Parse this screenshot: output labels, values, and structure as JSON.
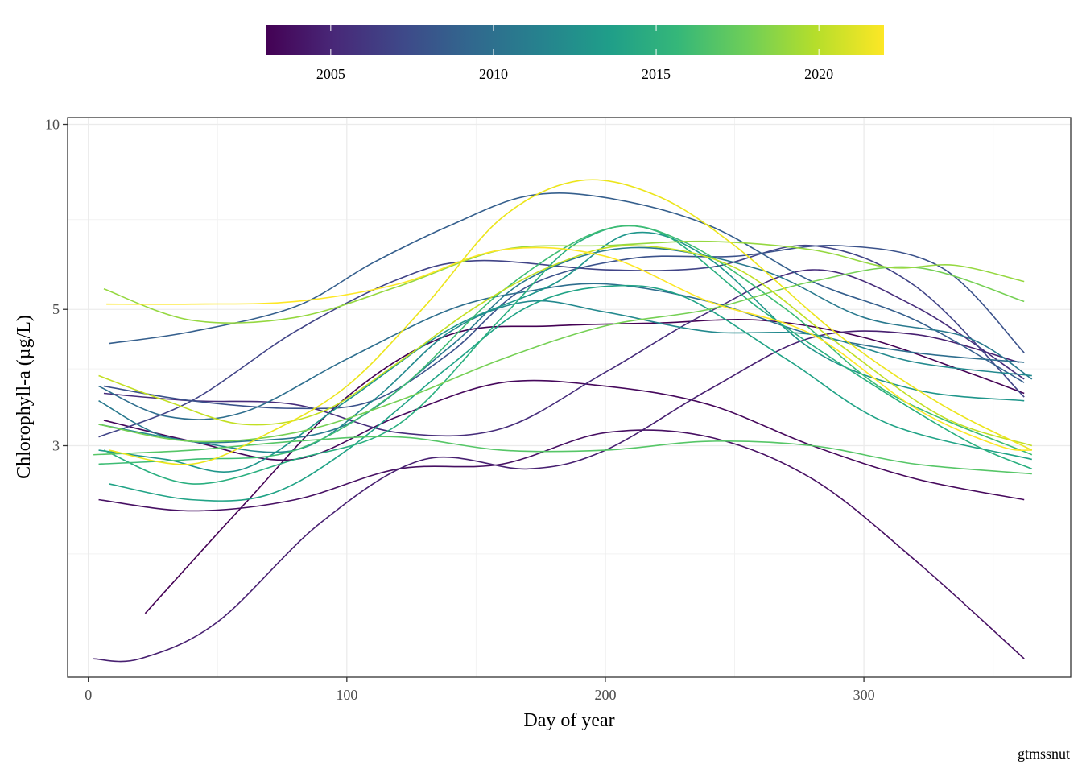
{
  "chart_data": {
    "type": "line",
    "xlabel": "Day of year",
    "ylabel": "Chlorophyll-a (µg/L)",
    "caption": "gtmssnut",
    "x_scale": "linear",
    "y_scale": "log",
    "xlim": [
      -8,
      380
    ],
    "ylim": [
      1.26,
      10.26
    ],
    "x_ticks": [
      0,
      100,
      200,
      300
    ],
    "x_tick_labels": [
      "0",
      "100",
      "200",
      "300"
    ],
    "y_ticks": [
      3,
      5,
      10
    ],
    "y_tick_labels": [
      "3",
      "5",
      "10"
    ],
    "grid": true,
    "colorbar": {
      "placement": "top",
      "palette": "viridis",
      "range": [
        2003,
        2022
      ],
      "ticks": [
        2005,
        2010,
        2015,
        2020
      ],
      "tick_labels": [
        "2005",
        "2010",
        "2015",
        "2020"
      ],
      "colors": [
        "#440154",
        "#482878",
        "#3e4989",
        "#31688e",
        "#26828e",
        "#1f9e89",
        "#35b779",
        "#6ece58",
        "#b5de2b",
        "#fde725"
      ]
    },
    "series": [
      {
        "year": 2003,
        "color": "#440154",
        "x": [
          22,
          60,
          100,
          140,
          180,
          220,
          260,
          300,
          340,
          362
        ],
        "y": [
          1.6,
          2.4,
          3.6,
          4.55,
          4.7,
          4.75,
          4.8,
          4.5,
          3.95,
          3.65
        ]
      },
      {
        "year": 2004,
        "color": "#46085c",
        "x": [
          6,
          40,
          80,
          120,
          160,
          200,
          240,
          280,
          320,
          362
        ],
        "y": [
          3.3,
          3.05,
          2.85,
          3.35,
          3.8,
          3.75,
          3.5,
          3.0,
          2.65,
          2.45
        ]
      },
      {
        "year": 2005,
        "color": "#471063",
        "x": [
          4,
          40,
          80,
          120,
          160,
          200,
          240,
          280,
          320,
          362
        ],
        "y": [
          2.45,
          2.35,
          2.45,
          2.75,
          2.8,
          3.15,
          3.1,
          2.65,
          1.95,
          1.35
        ]
      },
      {
        "year": 2006,
        "color": "#482071",
        "x": [
          2,
          20,
          50,
          90,
          130,
          170,
          200,
          240,
          280,
          320,
          360
        ],
        "y": [
          1.35,
          1.35,
          1.55,
          2.25,
          2.85,
          2.75,
          2.95,
          3.7,
          4.5,
          4.55,
          4.1
        ]
      },
      {
        "year": 2007,
        "color": "#472d7b",
        "x": [
          6,
          40,
          80,
          120,
          160,
          200,
          240,
          280,
          320,
          362
        ],
        "y": [
          3.65,
          3.55,
          3.5,
          3.15,
          3.2,
          3.95,
          4.95,
          5.8,
          5.05,
          3.85
        ]
      },
      {
        "year": 2008,
        "color": "#414487",
        "x": [
          4,
          40,
          80,
          120,
          150,
          200,
          240,
          280,
          320,
          362
        ],
        "y": [
          3.1,
          3.55,
          4.6,
          5.6,
          6.0,
          5.8,
          5.85,
          6.35,
          5.45,
          3.6
        ]
      },
      {
        "year": 2009,
        "color": "#3b528b",
        "x": [
          6,
          40,
          80,
          110,
          140,
          170,
          210,
          250,
          290,
          330,
          362
        ],
        "y": [
          3.75,
          3.55,
          3.45,
          3.55,
          4.25,
          5.45,
          6.05,
          6.1,
          6.35,
          5.85,
          4.25
        ]
      },
      {
        "year": 2010,
        "color": "#355f8d",
        "x": [
          8,
          40,
          80,
          110,
          140,
          170,
          200,
          240,
          280,
          320,
          362
        ],
        "y": [
          4.4,
          4.6,
          5.05,
          5.95,
          6.85,
          7.65,
          7.6,
          6.85,
          5.55,
          4.8,
          3.8
        ]
      },
      {
        "year": 2011,
        "color": "#2e6e8e",
        "x": [
          4,
          30,
          60,
          100,
          140,
          170,
          200,
          240,
          280,
          320,
          362
        ],
        "y": [
          3.75,
          3.35,
          3.4,
          4.15,
          5.0,
          5.35,
          5.5,
          5.15,
          4.55,
          4.25,
          4.1
        ]
      },
      {
        "year": 2012,
        "color": "#29798e",
        "x": [
          4,
          30,
          60,
          100,
          140,
          170,
          210,
          260,
          300,
          340,
          365
        ],
        "y": [
          3.55,
          3.1,
          3.05,
          3.25,
          4.35,
          5.6,
          6.3,
          5.8,
          4.85,
          4.5,
          3.85
        ]
      },
      {
        "year": 2013,
        "color": "#23898e",
        "x": [
          4,
          40,
          80,
          110,
          140,
          170,
          200,
          240,
          280,
          320,
          365
        ],
        "y": [
          3.25,
          3.05,
          2.95,
          3.55,
          4.6,
          5.15,
          4.95,
          4.6,
          4.55,
          4.1,
          3.9
        ]
      },
      {
        "year": 2014,
        "color": "#1f968b",
        "x": [
          4,
          30,
          60,
          100,
          140,
          180,
          210,
          240,
          280,
          320,
          362
        ],
        "y": [
          2.95,
          2.85,
          2.75,
          3.55,
          4.65,
          5.5,
          6.65,
          6.05,
          4.3,
          3.7,
          3.55
        ]
      },
      {
        "year": 2015,
        "color": "#20a386",
        "x": [
          8,
          40,
          70,
          100,
          140,
          170,
          200,
          230,
          270,
          310,
          365
        ],
        "y": [
          2.6,
          2.45,
          2.5,
          2.95,
          4.05,
          5.05,
          5.45,
          5.25,
          4.15,
          3.25,
          2.85
        ]
      },
      {
        "year": 2016,
        "color": "#29af7f",
        "x": [
          6,
          40,
          80,
          120,
          160,
          190,
          220,
          260,
          300,
          340,
          365
        ],
        "y": [
          2.95,
          2.6,
          2.85,
          3.25,
          4.85,
          6.45,
          6.7,
          5.0,
          3.85,
          3.05,
          2.75
        ]
      },
      {
        "year": 2017,
        "color": "#3dbc74",
        "x": [
          4,
          40,
          80,
          120,
          160,
          200,
          230,
          270,
          310,
          365
        ],
        "y": [
          2.8,
          2.85,
          2.95,
          3.7,
          5.35,
          6.75,
          6.45,
          5.0,
          3.65,
          2.9
        ]
      },
      {
        "year": 2018,
        "color": "#56c667",
        "x": [
          2,
          40,
          80,
          120,
          160,
          200,
          240,
          280,
          320,
          365
        ],
        "y": [
          2.9,
          2.95,
          3.05,
          3.1,
          2.95,
          2.95,
          3.05,
          3.0,
          2.8,
          2.7
        ]
      },
      {
        "year": 2019,
        "color": "#75d054",
        "x": [
          4,
          40,
          80,
          120,
          160,
          200,
          240,
          280,
          320,
          362
        ],
        "y": [
          3.25,
          3.05,
          3.15,
          3.55,
          4.15,
          4.7,
          5.0,
          5.55,
          5.85,
          5.15
        ]
      },
      {
        "year": 2020,
        "color": "#95d840",
        "x": [
          6,
          40,
          80,
          120,
          160,
          200,
          240,
          280,
          310,
          335,
          362
        ],
        "y": [
          5.4,
          4.8,
          4.85,
          5.45,
          6.25,
          6.35,
          6.45,
          6.25,
          5.85,
          5.9,
          5.55
        ]
      },
      {
        "year": 2021,
        "color": "#c2df23",
        "x": [
          4,
          30,
          60,
          90,
          120,
          150,
          180,
          210,
          250,
          290,
          330,
          365
        ],
        "y": [
          3.9,
          3.55,
          3.25,
          3.4,
          4.1,
          5.05,
          5.9,
          6.35,
          5.85,
          4.4,
          3.35,
          3.0
        ]
      },
      {
        "year": 2022,
        "color": "#fde725",
        "x": [
          7,
          40,
          80,
          120,
          160,
          200,
          240,
          280,
          320,
          352,
          365
        ],
        "y": [
          5.1,
          5.1,
          5.15,
          5.5,
          6.25,
          6.1,
          5.15,
          4.55,
          3.45,
          3.0,
          2.95
        ]
      },
      {
        "year": 2022,
        "color": "#ece51b",
        "x": [
          8,
          40,
          70,
          100,
          130,
          160,
          190,
          220,
          250,
          290,
          330,
          365
        ],
        "y": [
          2.95,
          2.8,
          3.15,
          3.75,
          5.05,
          7.05,
          8.1,
          7.65,
          6.35,
          4.55,
          3.5,
          2.95
        ]
      }
    ]
  }
}
